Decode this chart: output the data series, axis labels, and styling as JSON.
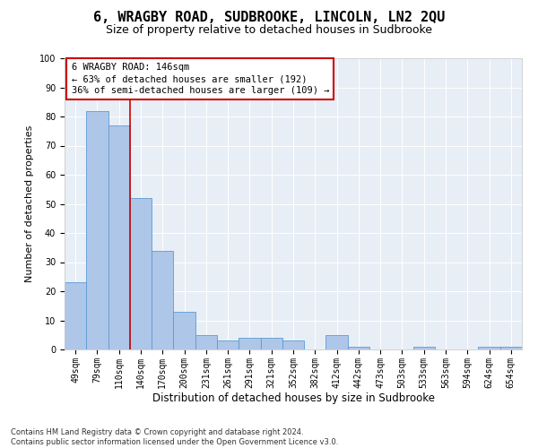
{
  "title": "6, WRAGBY ROAD, SUDBROOKE, LINCOLN, LN2 2QU",
  "subtitle": "Size of property relative to detached houses in Sudbrooke",
  "xlabel": "Distribution of detached houses by size in Sudbrooke",
  "ylabel": "Number of detached properties",
  "categories": [
    "49sqm",
    "79sqm",
    "110sqm",
    "140sqm",
    "170sqm",
    "200sqm",
    "231sqm",
    "261sqm",
    "291sqm",
    "321sqm",
    "352sqm",
    "382sqm",
    "412sqm",
    "442sqm",
    "473sqm",
    "503sqm",
    "533sqm",
    "563sqm",
    "594sqm",
    "624sqm",
    "654sqm"
  ],
  "values": [
    23,
    82,
    77,
    52,
    34,
    13,
    5,
    3,
    4,
    4,
    3,
    0,
    5,
    1,
    0,
    0,
    1,
    0,
    0,
    1,
    1
  ],
  "bar_color": "#aec6e8",
  "bar_edge_color": "#5b9bd5",
  "vline_color": "#cc0000",
  "annotation_text": "6 WRAGBY ROAD: 146sqm\n← 63% of detached houses are smaller (192)\n36% of semi-detached houses are larger (109) →",
  "annotation_box_color": "#ffffff",
  "annotation_box_edge": "#cc0000",
  "ylim": [
    0,
    100
  ],
  "yticks": [
    0,
    10,
    20,
    30,
    40,
    50,
    60,
    70,
    80,
    90,
    100
  ],
  "plot_bg_color": "#e8eef6",
  "footer": "Contains HM Land Registry data © Crown copyright and database right 2024.\nContains public sector information licensed under the Open Government Licence v3.0.",
  "title_fontsize": 11,
  "subtitle_fontsize": 9,
  "xlabel_fontsize": 8.5,
  "ylabel_fontsize": 8,
  "tick_fontsize": 7,
  "annotation_fontsize": 7.5,
  "footer_fontsize": 6
}
